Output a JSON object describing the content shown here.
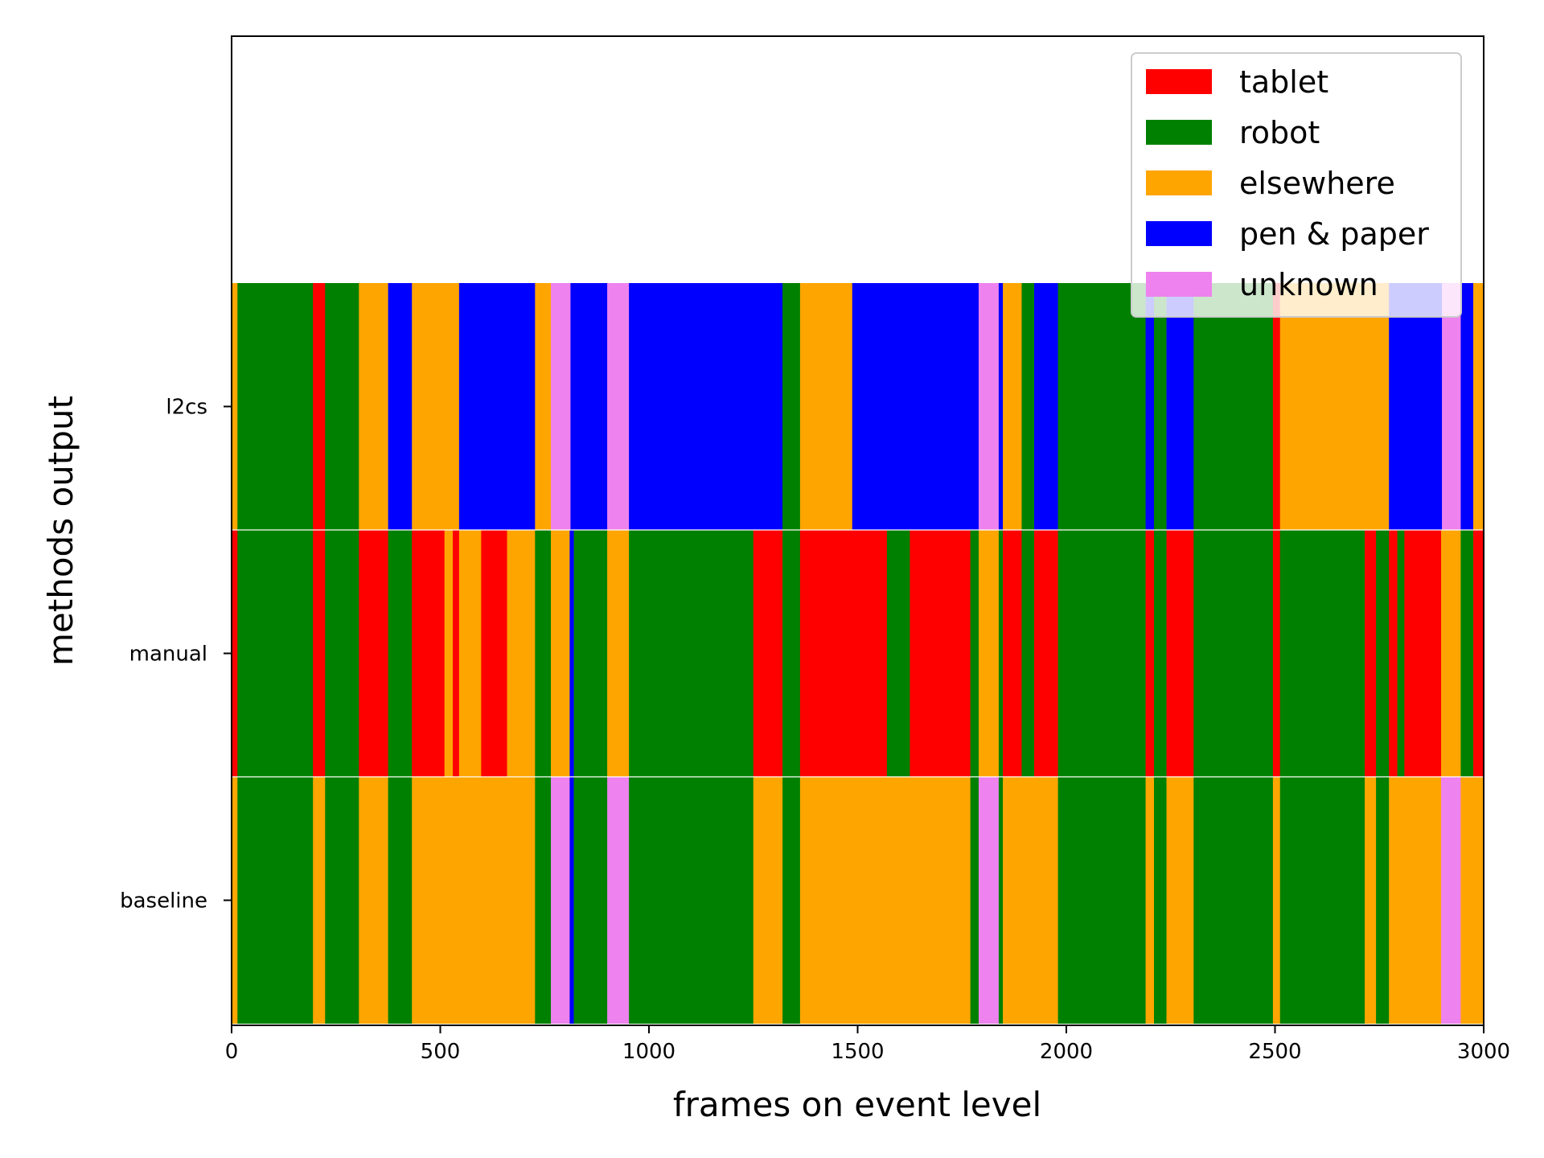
{
  "chart_data": {
    "type": "bar",
    "orientation": "horizontal-timeline",
    "xlabel": "frames on event level",
    "ylabel": "methods output",
    "xlim": [
      0,
      3000
    ],
    "x_ticks": [
      0,
      500,
      1000,
      1500,
      2000,
      2500,
      3000
    ],
    "y_ticks": [
      "l2cs",
      "manual",
      "baseline"
    ],
    "grid": false,
    "legend_placement": "top-right",
    "categories": [
      {
        "name": "tablet",
        "color": "#ff0000"
      },
      {
        "name": "robot",
        "color": "#008000"
      },
      {
        "name": "elsewhere",
        "color": "#ffa500"
      },
      {
        "name": "pen & paper",
        "color": "#0000ff"
      },
      {
        "name": "unknown",
        "color": "#ee82ee"
      }
    ],
    "series": [
      {
        "name": "l2cs",
        "segments": [
          [
            0,
            14,
            "elsewhere"
          ],
          [
            14,
            195,
            "robot"
          ],
          [
            195,
            224,
            "tablet"
          ],
          [
            224,
            305,
            "robot"
          ],
          [
            305,
            375,
            "elsewhere"
          ],
          [
            375,
            432,
            "pen & paper"
          ],
          [
            432,
            545,
            "elsewhere"
          ],
          [
            545,
            727,
            "pen & paper"
          ],
          [
            727,
            765,
            "elsewhere"
          ],
          [
            765,
            812,
            "unknown"
          ],
          [
            812,
            900,
            "pen & paper"
          ],
          [
            900,
            952,
            "unknown"
          ],
          [
            952,
            1320,
            "pen & paper"
          ],
          [
            1320,
            1362,
            "robot"
          ],
          [
            1362,
            1487,
            "elsewhere"
          ],
          [
            1487,
            1790,
            "pen & paper"
          ],
          [
            1790,
            1838,
            "unknown"
          ],
          [
            1838,
            1848,
            "pen & paper"
          ],
          [
            1848,
            1893,
            "elsewhere"
          ],
          [
            1893,
            1923,
            "robot"
          ],
          [
            1923,
            1980,
            "pen & paper"
          ],
          [
            1980,
            2190,
            "robot"
          ],
          [
            2190,
            2210,
            "pen & paper"
          ],
          [
            2210,
            2240,
            "robot"
          ],
          [
            2240,
            2305,
            "pen & paper"
          ],
          [
            2305,
            2495,
            "robot"
          ],
          [
            2495,
            2512,
            "tablet"
          ],
          [
            2512,
            2773,
            "elsewhere"
          ],
          [
            2773,
            2900,
            "pen & paper"
          ],
          [
            2900,
            2945,
            "unknown"
          ],
          [
            2945,
            2975,
            "pen & paper"
          ],
          [
            2975,
            3000,
            "elsewhere"
          ]
        ]
      },
      {
        "name": "manual",
        "segments": [
          [
            0,
            14,
            "tablet"
          ],
          [
            14,
            195,
            "robot"
          ],
          [
            195,
            224,
            "tablet"
          ],
          [
            224,
            305,
            "robot"
          ],
          [
            305,
            375,
            "tablet"
          ],
          [
            375,
            432,
            "robot"
          ],
          [
            432,
            510,
            "tablet"
          ],
          [
            510,
            530,
            "elsewhere"
          ],
          [
            530,
            545,
            "tablet"
          ],
          [
            545,
            598,
            "elsewhere"
          ],
          [
            598,
            660,
            "tablet"
          ],
          [
            660,
            727,
            "elsewhere"
          ],
          [
            727,
            765,
            "robot"
          ],
          [
            765,
            810,
            "elsewhere"
          ],
          [
            810,
            820,
            "pen & paper"
          ],
          [
            820,
            842,
            "robot"
          ],
          [
            842,
            900,
            "robot"
          ],
          [
            900,
            952,
            "elsewhere"
          ],
          [
            952,
            1250,
            "robot"
          ],
          [
            1250,
            1320,
            "tablet"
          ],
          [
            1320,
            1362,
            "robot"
          ],
          [
            1362,
            1490,
            "tablet"
          ],
          [
            1490,
            1570,
            "tablet"
          ],
          [
            1570,
            1625,
            "robot"
          ],
          [
            1625,
            1770,
            "tablet"
          ],
          [
            1770,
            1790,
            "robot"
          ],
          [
            1790,
            1838,
            "elsewhere"
          ],
          [
            1838,
            1848,
            "robot"
          ],
          [
            1848,
            1893,
            "tablet"
          ],
          [
            1893,
            1923,
            "robot"
          ],
          [
            1923,
            1980,
            "tablet"
          ],
          [
            1980,
            2190,
            "robot"
          ],
          [
            2190,
            2210,
            "tablet"
          ],
          [
            2210,
            2240,
            "robot"
          ],
          [
            2240,
            2305,
            "tablet"
          ],
          [
            2305,
            2495,
            "robot"
          ],
          [
            2495,
            2512,
            "tablet"
          ],
          [
            2512,
            2715,
            "robot"
          ],
          [
            2715,
            2742,
            "tablet"
          ],
          [
            2742,
            2773,
            "robot"
          ],
          [
            2773,
            2793,
            "tablet"
          ],
          [
            2793,
            2810,
            "robot"
          ],
          [
            2810,
            2898,
            "tablet"
          ],
          [
            2898,
            2945,
            "elsewhere"
          ],
          [
            2945,
            2975,
            "robot"
          ],
          [
            2975,
            3000,
            "tablet"
          ]
        ]
      },
      {
        "name": "baseline",
        "segments": [
          [
            0,
            14,
            "elsewhere"
          ],
          [
            14,
            195,
            "robot"
          ],
          [
            195,
            224,
            "elsewhere"
          ],
          [
            224,
            305,
            "robot"
          ],
          [
            305,
            375,
            "elsewhere"
          ],
          [
            375,
            432,
            "robot"
          ],
          [
            432,
            727,
            "elsewhere"
          ],
          [
            727,
            765,
            "robot"
          ],
          [
            765,
            810,
            "unknown"
          ],
          [
            810,
            820,
            "pen & paper"
          ],
          [
            820,
            842,
            "robot"
          ],
          [
            842,
            900,
            "robot"
          ],
          [
            900,
            952,
            "unknown"
          ],
          [
            952,
            1250,
            "robot"
          ],
          [
            1250,
            1320,
            "elsewhere"
          ],
          [
            1320,
            1362,
            "robot"
          ],
          [
            1362,
            1770,
            "elsewhere"
          ],
          [
            1770,
            1790,
            "robot"
          ],
          [
            1790,
            1838,
            "unknown"
          ],
          [
            1838,
            1848,
            "robot"
          ],
          [
            1848,
            1980,
            "elsewhere"
          ],
          [
            1980,
            2190,
            "robot"
          ],
          [
            2190,
            2210,
            "elsewhere"
          ],
          [
            2210,
            2240,
            "robot"
          ],
          [
            2240,
            2305,
            "elsewhere"
          ],
          [
            2305,
            2495,
            "robot"
          ],
          [
            2495,
            2512,
            "elsewhere"
          ],
          [
            2512,
            2715,
            "robot"
          ],
          [
            2715,
            2742,
            "elsewhere"
          ],
          [
            2742,
            2773,
            "robot"
          ],
          [
            2773,
            2898,
            "elsewhere"
          ],
          [
            2898,
            2945,
            "unknown"
          ],
          [
            2945,
            3000,
            "elsewhere"
          ]
        ]
      }
    ]
  }
}
